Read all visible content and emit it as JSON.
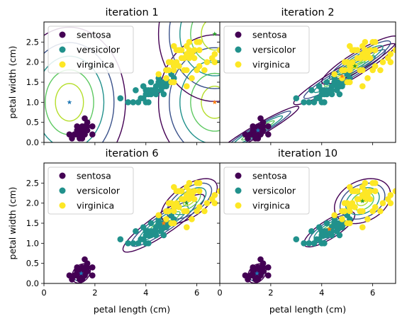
{
  "figure": {
    "panel_titles": [
      "iteration 1",
      "iteration 2",
      "iteration 6",
      "iteration 10"
    ],
    "ylabel": "petal width (cm)",
    "xlabel": "petal length (cm)",
    "legend_labels": [
      "sentosa",
      "versicolor",
      "virginica"
    ],
    "colors": {
      "sentosa": "#440154",
      "versicolor": "#21918c",
      "virginica": "#fde725",
      "mean_markers": [
        "#1f77b4",
        "#ff7f0e",
        "#2ca02c"
      ],
      "contour_levels": [
        "#440154",
        "#3b528b",
        "#21918c",
        "#5ec962",
        "#b5de2b"
      ]
    }
  },
  "chart_data": [
    {
      "type": "scatter",
      "title": "iteration 1",
      "xlabel": "",
      "ylabel": "petal width (cm)",
      "xlim": [
        0,
        6.9
      ],
      "ylim": [
        0,
        3.0
      ],
      "xticks": [
        0,
        2,
        4,
        6
      ],
      "yticks": [
        0.0,
        0.5,
        1.0,
        1.5,
        2.0,
        2.5
      ],
      "legend": "top-left",
      "component_means": [
        [
          1.0,
          1.0
        ],
        [
          6.7,
          1.0
        ],
        [
          6.7,
          2.7
        ]
      ],
      "contours": [
        {
          "center": [
            1.0,
            1.0
          ],
          "sx": 1.0,
          "sy": 0.85,
          "rho": 0.0,
          "radii": [
            0.55,
            0.95,
            1.35,
            1.75,
            2.2
          ]
        },
        {
          "center": [
            6.7,
            1.0
          ],
          "sx": 1.05,
          "sy": 0.8,
          "rho": 0.0,
          "radii": [
            0.5,
            0.9,
            1.3,
            1.7,
            2.1
          ]
        },
        {
          "center": [
            6.7,
            2.7
          ],
          "sx": 1.05,
          "sy": 0.8,
          "rho": 0.0,
          "radii": [
            0.5,
            0.9,
            1.3,
            1.7,
            2.1
          ]
        }
      ]
    },
    {
      "type": "scatter",
      "title": "iteration 2",
      "xlabel": "",
      "ylabel": "",
      "xlim": [
        0,
        6.9
      ],
      "ylim": [
        0,
        3.0
      ],
      "xticks": [
        0,
        2,
        4,
        6
      ],
      "yticks": [
        0.0,
        0.5,
        1.0,
        1.5,
        2.0,
        2.5
      ],
      "legend": "top-left",
      "component_means": [
        [
          1.5,
          0.3
        ],
        [
          4.8,
          1.65
        ],
        [
          5.3,
          1.9
        ]
      ],
      "contours": [
        {
          "center": [
            1.5,
            0.3
          ],
          "sx": 0.8,
          "sy": 0.3,
          "rho": 0.96,
          "radii": [
            0.4,
            0.8,
            1.2,
            1.6,
            2.0
          ]
        },
        {
          "center": [
            4.9,
            1.7
          ],
          "sx": 1.0,
          "sy": 0.38,
          "rho": 0.95,
          "radii": [
            0.4,
            0.8,
            1.2,
            1.6,
            2.0
          ]
        },
        {
          "center": [
            5.5,
            2.05
          ],
          "sx": 0.75,
          "sy": 0.3,
          "rho": 0.9,
          "radii": [
            0.4,
            0.8,
            1.2,
            1.6,
            2.0
          ]
        }
      ]
    },
    {
      "type": "scatter",
      "title": "iteration 6",
      "xlabel": "petal length (cm)",
      "ylabel": "petal width (cm)",
      "xlim": [
        0,
        6.9
      ],
      "ylim": [
        0,
        3.0
      ],
      "xticks": [
        0,
        2,
        4,
        6
      ],
      "yticks": [
        0.0,
        0.5,
        1.0,
        1.5,
        2.0,
        2.5
      ],
      "legend": "top-left",
      "component_means": [
        [
          1.46,
          0.25
        ],
        [
          4.7,
          1.5
        ],
        [
          5.6,
          2.0
        ]
      ],
      "contours": [
        {
          "center": [
            1.46,
            0.25
          ],
          "sx": 0.18,
          "sy": 0.12,
          "rho": 0.3,
          "radii": [
            0.4,
            0.8,
            1.2,
            1.6,
            2.0
          ]
        },
        {
          "center": [
            4.7,
            1.5
          ],
          "sx": 0.8,
          "sy": 0.36,
          "rho": 0.9,
          "radii": [
            0.4,
            0.8,
            1.2,
            1.6,
            2.0
          ]
        },
        {
          "center": [
            5.7,
            2.05
          ],
          "sx": 0.55,
          "sy": 0.28,
          "rho": 0.6,
          "radii": [
            0.4,
            0.8,
            1.2,
            1.6,
            2.0
          ]
        }
      ]
    },
    {
      "type": "scatter",
      "title": "iteration 10",
      "xlabel": "petal length (cm)",
      "ylabel": "",
      "xlim": [
        0,
        6.9
      ],
      "ylim": [
        0,
        3.0
      ],
      "xticks": [
        0,
        2,
        4,
        6
      ],
      "yticks": [
        0.0,
        0.5,
        1.0,
        1.5,
        2.0,
        2.5
      ],
      "legend": "top-left",
      "component_means": [
        [
          1.46,
          0.25
        ],
        [
          4.3,
          1.35
        ],
        [
          5.6,
          2.05
        ]
      ],
      "contours": [
        {
          "center": [
            1.46,
            0.25
          ],
          "sx": 0.18,
          "sy": 0.12,
          "rho": 0.3,
          "radii": [
            0.4,
            0.8,
            1.2,
            1.6,
            2.0
          ]
        },
        {
          "center": [
            4.3,
            1.35
          ],
          "sx": 0.5,
          "sy": 0.22,
          "rho": 0.8,
          "radii": [
            0.4,
            0.8,
            1.2,
            1.6,
            2.0
          ]
        },
        {
          "center": [
            5.6,
            2.05
          ],
          "sx": 0.55,
          "sy": 0.28,
          "rho": 0.3,
          "radii": [
            0.4,
            0.8,
            1.2,
            1.6,
            2.0
          ]
        }
      ]
    }
  ],
  "points": {
    "sentosa": [
      [
        1.4,
        0.2
      ],
      [
        1.3,
        0.2
      ],
      [
        1.5,
        0.2
      ],
      [
        1.7,
        0.4
      ],
      [
        1.4,
        0.3
      ],
      [
        1.5,
        0.1
      ],
      [
        1.6,
        0.2
      ],
      [
        1.1,
        0.1
      ],
      [
        1.2,
        0.2
      ],
      [
        1.5,
        0.4
      ],
      [
        1.3,
        0.4
      ],
      [
        1.7,
        0.3
      ],
      [
        1.5,
        0.3
      ],
      [
        1.0,
        0.2
      ],
      [
        1.9,
        0.2
      ],
      [
        1.6,
        0.4
      ],
      [
        1.6,
        0.6
      ],
      [
        1.9,
        0.4
      ],
      [
        1.4,
        0.1
      ],
      [
        1.7,
        0.5
      ],
      [
        1.5,
        0.2
      ],
      [
        1.3,
        0.3
      ],
      [
        1.6,
        0.2
      ],
      [
        1.2,
        0.2
      ],
      [
        1.4,
        0.2
      ]
    ],
    "versicolor": [
      [
        4.7,
        1.4
      ],
      [
        4.5,
        1.5
      ],
      [
        4.9,
        1.5
      ],
      [
        4.0,
        1.3
      ],
      [
        4.6,
        1.5
      ],
      [
        3.3,
        1.0
      ],
      [
        3.9,
        1.4
      ],
      [
        3.5,
        1.0
      ],
      [
        4.2,
        1.5
      ],
      [
        4.0,
        1.0
      ],
      [
        4.7,
        1.4
      ],
      [
        3.6,
        1.3
      ],
      [
        4.4,
        1.4
      ],
      [
        4.1,
        1.0
      ],
      [
        4.5,
        1.5
      ],
      [
        3.9,
        1.1
      ],
      [
        4.8,
        1.8
      ],
      [
        4.0,
        1.3
      ],
      [
        4.9,
        1.5
      ],
      [
        4.7,
        1.2
      ],
      [
        4.3,
        1.3
      ],
      [
        4.8,
        1.4
      ],
      [
        5.0,
        1.7
      ],
      [
        3.8,
        1.1
      ],
      [
        3.7,
        1.0
      ],
      [
        5.1,
        1.6
      ],
      [
        4.5,
        1.6
      ],
      [
        4.7,
        1.5
      ],
      [
        4.4,
        1.3
      ],
      [
        4.1,
        1.3
      ],
      [
        4.4,
        1.2
      ],
      [
        4.6,
        1.4
      ],
      [
        3.0,
        1.1
      ],
      [
        4.2,
        1.2
      ],
      [
        4.2,
        1.3
      ],
      [
        4.3,
        1.3
      ],
      [
        4.1,
        1.2
      ],
      [
        5.1,
        1.9
      ],
      [
        4.6,
        1.3
      ],
      [
        4.0,
        1.2
      ]
    ],
    "virginica": [
      [
        6.0,
        2.5
      ],
      [
        5.1,
        1.9
      ],
      [
        5.9,
        2.1
      ],
      [
        5.6,
        1.8
      ],
      [
        5.8,
        2.2
      ],
      [
        6.6,
        2.1
      ],
      [
        4.5,
        1.7
      ],
      [
        6.3,
        1.8
      ],
      [
        6.1,
        2.5
      ],
      [
        5.3,
        1.9
      ],
      [
        5.5,
        2.1
      ],
      [
        5.0,
        2.0
      ],
      [
        5.1,
        2.4
      ],
      [
        5.3,
        2.3
      ],
      [
        6.7,
        2.2
      ],
      [
        6.9,
        2.3
      ],
      [
        5.0,
        1.5
      ],
      [
        5.7,
        2.3
      ],
      [
        4.9,
        2.0
      ],
      [
        6.7,
        2.0
      ],
      [
        4.9,
        1.8
      ],
      [
        5.7,
        2.1
      ],
      [
        6.0,
        1.8
      ],
      [
        4.8,
        1.8
      ],
      [
        5.8,
        1.6
      ],
      [
        6.1,
        1.9
      ],
      [
        6.4,
        2.0
      ],
      [
        5.6,
        2.2
      ],
      [
        5.1,
        1.5
      ],
      [
        5.6,
        1.4
      ],
      [
        6.1,
        2.3
      ],
      [
        5.5,
        1.8
      ],
      [
        5.4,
        2.1
      ],
      [
        5.6,
        2.4
      ],
      [
        5.2,
        2.3
      ],
      [
        5.9,
        2.3
      ],
      [
        5.7,
        2.5
      ],
      [
        5.2,
        2.0
      ],
      [
        5.4,
        2.3
      ],
      [
        5.1,
        1.8
      ],
      [
        4.8,
        1.6
      ]
    ]
  }
}
